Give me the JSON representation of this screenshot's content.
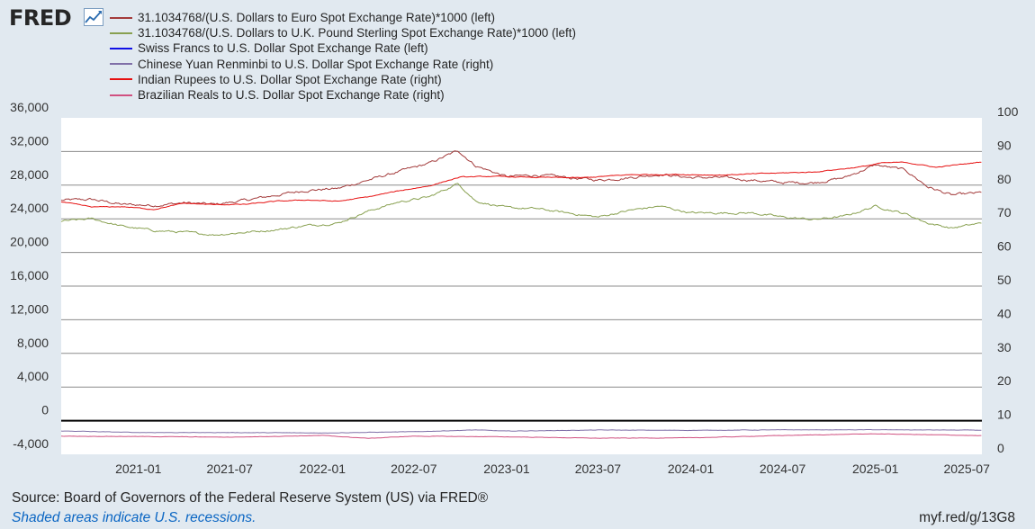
{
  "header": {
    "logo_text": "FRED",
    "logo_icon": "line-chart-icon"
  },
  "legend": [
    {
      "label": "31.1034768/(U.S. Dollars to Euro Spot Exchange Rate)*1000 (left)",
      "color": "#a33b3b"
    },
    {
      "label": "31.1034768/(U.S. Dollars to U.K. Pound Sterling Spot Exchange Rate)*1000 (left)",
      "color": "#88a050"
    },
    {
      "label": "Swiss Francs to U.S. Dollar Spot Exchange Rate (left)",
      "color": "#1010e6"
    },
    {
      "label": "Chinese Yuan Renminbi to U.S. Dollar Spot Exchange Rate (right)",
      "color": "#8070a8"
    },
    {
      "label": "Indian Rupees to U.S. Dollar Spot Exchange Rate (right)",
      "color": "#e61010"
    },
    {
      "label": "Brazilian Reals to U.S. Dollar Spot Exchange Rate (right)",
      "color": "#d05080"
    }
  ],
  "footer": {
    "source": "Source: Board of Governors of the Federal Reserve System (US) via FRED®",
    "recession_note": "Shaded areas indicate U.S. recessions.",
    "short_url": "myf.red/g/13G8"
  },
  "colors": {
    "background": "#e1e9f0",
    "plot_background": "#ffffff",
    "gridline": "#8c8c8c",
    "zero_line": "#000000",
    "link": "#0b66c3"
  },
  "chart_data": {
    "type": "line",
    "left_axis": {
      "ylim": [
        -4000,
        36000
      ],
      "tick_labels": [
        "-4,000",
        "0",
        "4,000",
        "8,000",
        "12,000",
        "16,000",
        "20,000",
        "24,000",
        "28,000",
        "32,000",
        "36,000"
      ],
      "tick_values": [
        -4000,
        0,
        4000,
        8000,
        12000,
        16000,
        20000,
        24000,
        28000,
        32000,
        36000
      ]
    },
    "right_axis": {
      "ylim": [
        0,
        100
      ],
      "tick_labels": [
        "0",
        "10",
        "20",
        "30",
        "40",
        "50",
        "60",
        "70",
        "80",
        "90",
        "100"
      ],
      "tick_values": [
        0,
        10,
        20,
        30,
        40,
        50,
        60,
        70,
        80,
        90,
        100
      ]
    },
    "x_axis": {
      "xlim": [
        "2020-08-01",
        "2025-07-31"
      ],
      "tick_labels": [
        "2021-01",
        "2021-07",
        "2022-01",
        "2022-07",
        "2023-01",
        "2023-07",
        "2024-01",
        "2024-07",
        "2025-01",
        "2025-07"
      ],
      "tick_values": [
        "2021-01-01",
        "2021-07-01",
        "2022-01-01",
        "2022-07-01",
        "2023-01-01",
        "2023-07-01",
        "2024-01-01",
        "2024-07-01",
        "2025-01-01",
        "2025-07-01"
      ]
    },
    "grid": true,
    "zero_line": true,
    "series": [
      {
        "name": "31.1034768/(U.S. Dollars to Euro Spot Exchange Rate)*1000 (left)",
        "axis": "left",
        "color": "#a33b3b",
        "noise": 150,
        "x": [
          "2020-08-01",
          "2020-10-01",
          "2020-12-01",
          "2021-02-01",
          "2021-04-01",
          "2021-06-01",
          "2021-08-01",
          "2021-10-01",
          "2021-12-01",
          "2022-02-01",
          "2022-04-01",
          "2022-06-01",
          "2022-08-01",
          "2022-09-27",
          "2022-11-01",
          "2023-01-01",
          "2023-03-01",
          "2023-05-01",
          "2023-07-01",
          "2023-09-01",
          "2023-11-01",
          "2024-01-01",
          "2024-03-01",
          "2024-05-01",
          "2024-07-01",
          "2024-09-01",
          "2024-11-01",
          "2025-01-01",
          "2025-03-01",
          "2025-04-15",
          "2025-06-01",
          "2025-07-31"
        ],
        "y": [
          26200,
          26300,
          25700,
          25600,
          25900,
          25700,
          26200,
          26800,
          27400,
          27600,
          28600,
          29600,
          30600,
          32100,
          30300,
          29000,
          29200,
          28900,
          28600,
          28900,
          29300,
          28900,
          28900,
          28600,
          28300,
          28300,
          28900,
          30400,
          29800,
          27800,
          26800,
          27100
        ]
      },
      {
        "name": "31.1034768/(U.S. Dollars to U.K. Pound Sterling Spot Exchange Rate)*1000 (left)",
        "axis": "left",
        "color": "#88a050",
        "noise": 120,
        "x": [
          "2020-08-01",
          "2020-10-01",
          "2020-12-01",
          "2021-02-01",
          "2021-04-01",
          "2021-06-01",
          "2021-08-01",
          "2021-10-01",
          "2021-12-01",
          "2022-02-01",
          "2022-04-01",
          "2022-06-01",
          "2022-08-01",
          "2022-09-27",
          "2022-11-01",
          "2023-01-01",
          "2023-03-01",
          "2023-05-01",
          "2023-07-01",
          "2023-09-01",
          "2023-11-01",
          "2024-01-01",
          "2024-03-01",
          "2024-05-01",
          "2024-07-01",
          "2024-09-01",
          "2024-11-01",
          "2025-01-01",
          "2025-03-01",
          "2025-04-15",
          "2025-06-01",
          "2025-07-31"
        ],
        "y": [
          23700,
          24000,
          23100,
          22600,
          22400,
          22100,
          22400,
          22700,
          23200,
          23500,
          24900,
          26000,
          26600,
          28200,
          26100,
          25300,
          25200,
          24700,
          24200,
          25000,
          25500,
          24700,
          24700,
          24700,
          24200,
          23900,
          24300,
          25500,
          24600,
          23500,
          22900,
          23500
        ]
      },
      {
        "name": "Swiss Francs to U.S. Dollar Spot Exchange Rate (left)",
        "axis": "left",
        "color": "#1010e6",
        "noise": 0,
        "x": [
          "2020-08-01",
          "2025-07-31"
        ],
        "y": [
          0.91,
          0.8
        ]
      },
      {
        "name": "Chinese Yuan Renminbi to U.S. Dollar Spot Exchange Rate (right)",
        "axis": "right",
        "color": "#8070a8",
        "noise": 0.05,
        "x": [
          "2020-08-01",
          "2021-01-01",
          "2021-07-01",
          "2022-01-01",
          "2022-07-01",
          "2022-11-01",
          "2023-01-01",
          "2023-07-01",
          "2024-01-01",
          "2024-07-01",
          "2025-01-01",
          "2025-07-31"
        ],
        "y": [
          6.95,
          6.48,
          6.47,
          6.36,
          6.71,
          7.25,
          6.9,
          7.22,
          7.13,
          7.27,
          7.3,
          7.18
        ]
      },
      {
        "name": "Indian Rupees to U.S. Dollar Spot Exchange Rate (right)",
        "axis": "right",
        "color": "#e61010",
        "noise": 0.12,
        "x": [
          "2020-08-01",
          "2020-10-01",
          "2020-12-01",
          "2021-02-01",
          "2021-04-01",
          "2021-06-01",
          "2021-08-01",
          "2021-10-01",
          "2021-12-01",
          "2022-02-01",
          "2022-04-01",
          "2022-06-01",
          "2022-08-01",
          "2022-10-01",
          "2022-12-01",
          "2023-03-01",
          "2023-06-01",
          "2023-09-01",
          "2023-12-01",
          "2024-03-01",
          "2024-06-01",
          "2024-09-01",
          "2024-12-01",
          "2025-01-15",
          "2025-03-01",
          "2025-05-01",
          "2025-07-31"
        ],
        "y": [
          75.0,
          73.5,
          73.6,
          72.8,
          74.6,
          74.2,
          74.3,
          75.2,
          75.6,
          75.2,
          76.5,
          78.3,
          79.8,
          82.4,
          82.6,
          82.3,
          82.2,
          83.1,
          83.2,
          83.0,
          83.5,
          83.9,
          85.4,
          86.6,
          86.8,
          85.3,
          86.9
        ]
      },
      {
        "name": "Brazilian Reals to U.S. Dollar Spot Exchange Rate (right)",
        "axis": "right",
        "color": "#d05080",
        "noise": 0.05,
        "x": [
          "2020-08-01",
          "2021-01-01",
          "2021-07-01",
          "2022-01-01",
          "2022-04-01",
          "2022-07-01",
          "2023-01-01",
          "2023-07-01",
          "2024-01-01",
          "2024-07-01",
          "2025-01-01",
          "2025-07-31"
        ],
        "y": [
          5.4,
          5.3,
          5.1,
          5.6,
          4.75,
          5.4,
          5.2,
          4.8,
          4.9,
          5.6,
          6.1,
          5.55
        ]
      }
    ]
  }
}
